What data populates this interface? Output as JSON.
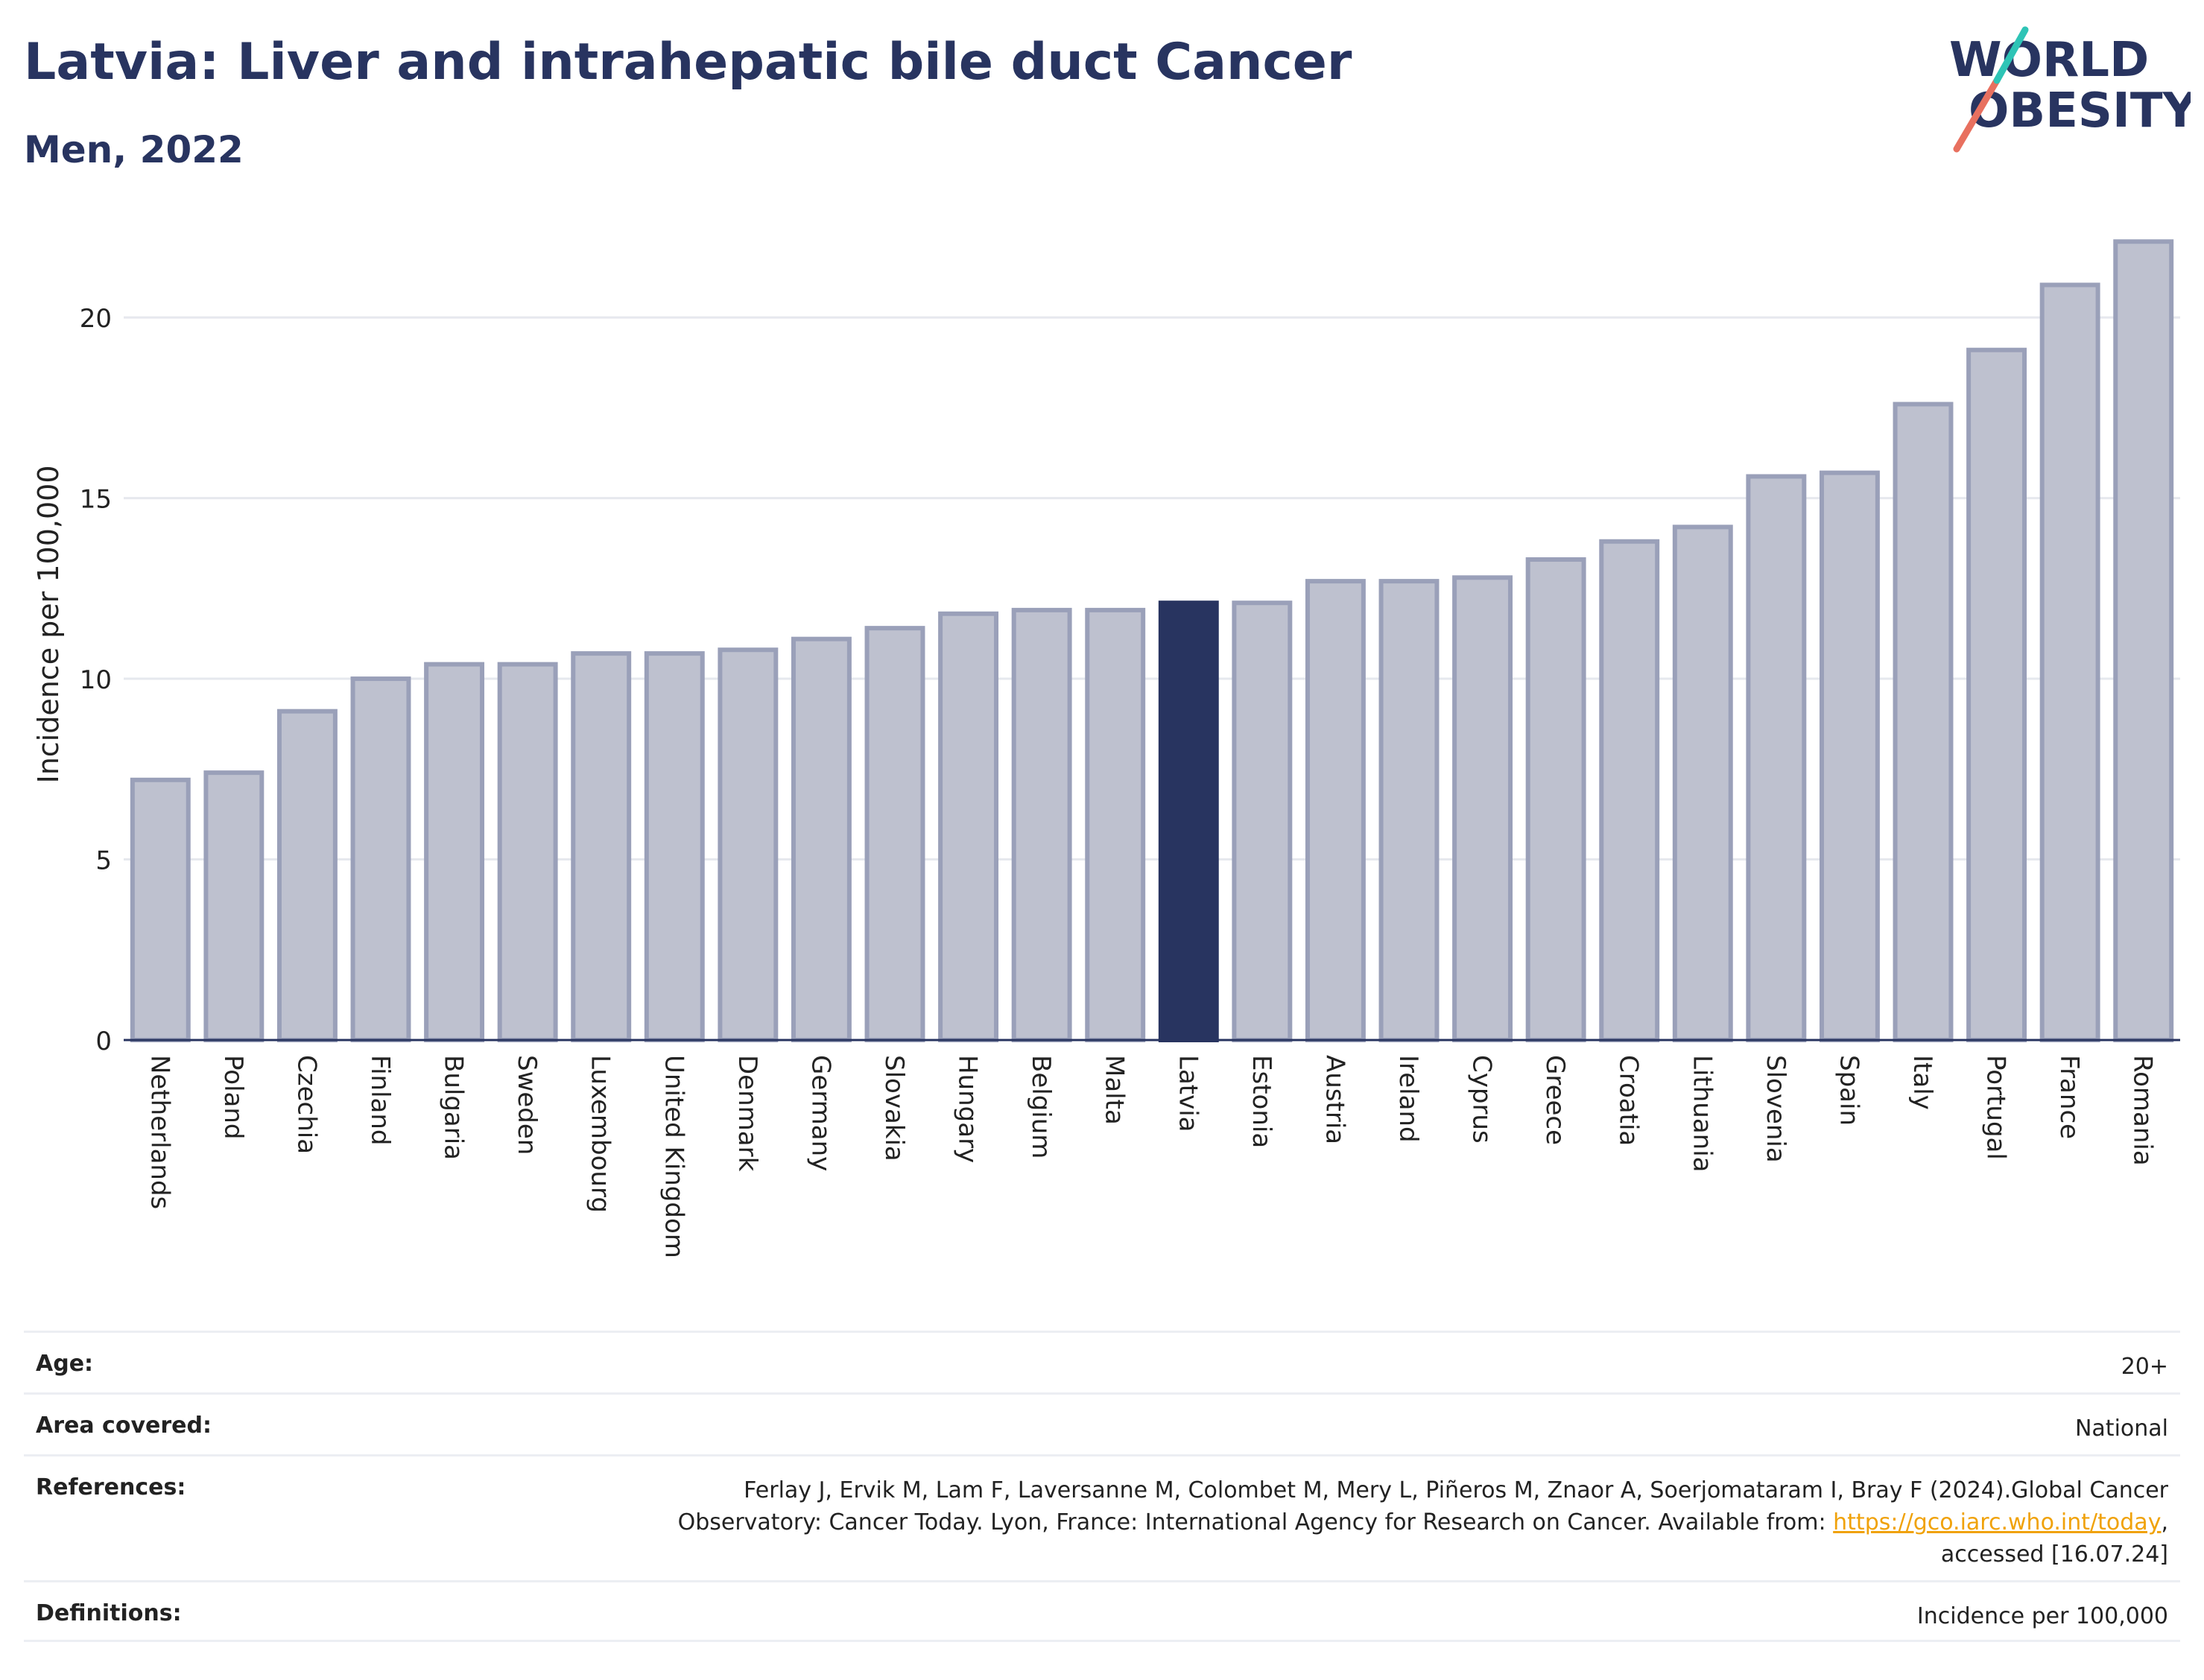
{
  "title": "Latvia: Liver and intrahepatic bile duct Cancer",
  "subtitle": "Men, 2022",
  "logo": {
    "line1": "WORLD",
    "line2": "OBESITY",
    "colors": [
      "#283460",
      "#e8705f",
      "#2ec4b6"
    ]
  },
  "colors": {
    "bar": "#bec1cf",
    "bar_edge": "#9aa0b9",
    "highlight": "#283460",
    "grid": "#e6e8ee",
    "axis": "#283460"
  },
  "chart_data": {
    "type": "bar",
    "title": "Latvia: Liver and intrahepatic bile duct Cancer",
    "subtitle": "Men, 2022",
    "xlabel": "",
    "ylabel": "Incidence per 100,000",
    "ylim": [
      0,
      22.6
    ],
    "yticks": [
      0,
      5,
      10,
      15,
      20
    ],
    "grid": true,
    "highlight": "Latvia",
    "categories": [
      "Netherlands",
      "Poland",
      "Czechia",
      "Finland",
      "Bulgaria",
      "Sweden",
      "Luxembourg",
      "United Kingdom",
      "Denmark",
      "Germany",
      "Slovakia",
      "Hungary",
      "Belgium",
      "Malta",
      "Latvia",
      "Estonia",
      "Austria",
      "Ireland",
      "Cyprus",
      "Greece",
      "Croatia",
      "Lithuania",
      "Slovenia",
      "Spain",
      "Italy",
      "Portugal",
      "France",
      "Romania"
    ],
    "values": [
      7.2,
      7.4,
      9.1,
      10.0,
      10.4,
      10.4,
      10.7,
      10.7,
      10.8,
      11.1,
      11.4,
      11.8,
      11.9,
      11.9,
      12.1,
      12.1,
      12.7,
      12.7,
      12.8,
      13.3,
      13.8,
      14.2,
      15.6,
      15.7,
      17.6,
      19.1,
      20.9,
      22.1
    ]
  },
  "meta": {
    "age_label": "Age:",
    "age_value": "20+",
    "area_label": "Area covered:",
    "area_value": "National",
    "references_label": "References:",
    "references_line1": "Ferlay J, Ervik M, Lam F, Laversanne M, Colombet M, Mery L, Piñeros M, Znaor A, Soerjomataram I, Bray F (2024).Global Cancer",
    "references_line2_pre": "Observatory: Cancer Today. Lyon, France: International Agency for Research on Cancer. Available from: ",
    "references_link": "https://gco.iarc.who.int/today",
    "references_line2_post": ",",
    "references_line3": "accessed [16.07.24]",
    "definitions_label": "Definitions:",
    "definitions_value": "Incidence per 100,000"
  }
}
